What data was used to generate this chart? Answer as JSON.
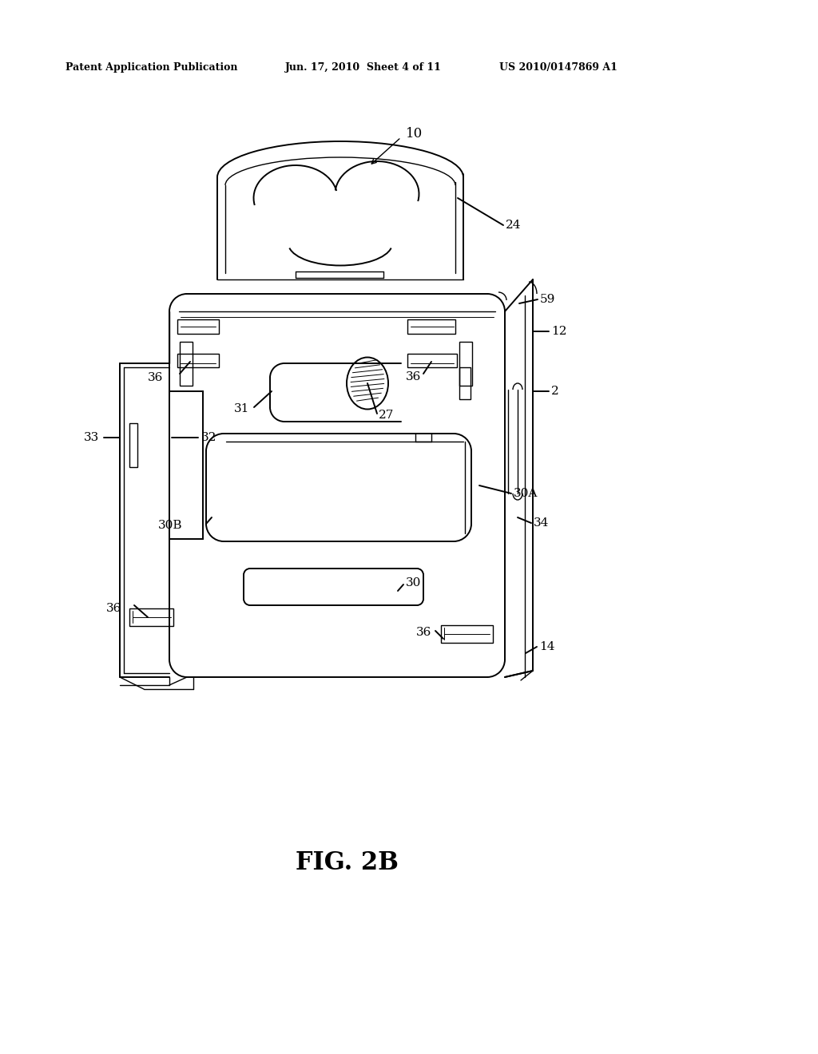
{
  "background_color": "#ffffff",
  "header_left": "Patent Application Publication",
  "header_mid": "Jun. 17, 2010  Sheet 4 of 11",
  "header_right": "US 2010/0147869 A1",
  "figure_label": "FIG. 2B"
}
